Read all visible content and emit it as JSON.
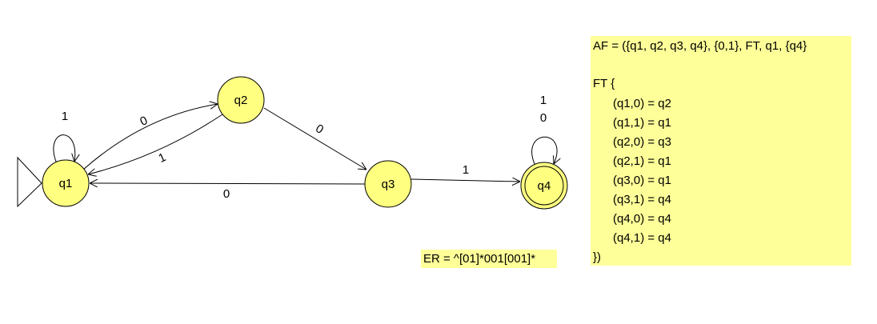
{
  "nodes": [
    {
      "label": "q1"
    },
    {
      "label": "q2"
    },
    {
      "label": "q3"
    },
    {
      "label": "q4"
    }
  ],
  "edges": [
    {
      "label": "1"
    },
    {
      "label": "0"
    },
    {
      "label": "1"
    },
    {
      "label": "0"
    },
    {
      "label": "0"
    },
    {
      "label": "1"
    },
    {
      "label": "1"
    },
    {
      "label": "0"
    }
  ],
  "definition": {
    "lines": [
      "AF = ({q1, q2, q3, q4}, {0,1}, FT, q1, {q4}",
      "FT {",
      "(q1,0) = q2",
      "(q1,1) = q1",
      "(q2,0) = q3",
      "(q2,1) = q1",
      "(q3,0) = q1",
      "(q3,1) = q4",
      "(q4,0) = q4",
      "(q4,1) = q4",
      "})"
    ]
  },
  "regex": "ER = ^[01]*001[001]*"
}
